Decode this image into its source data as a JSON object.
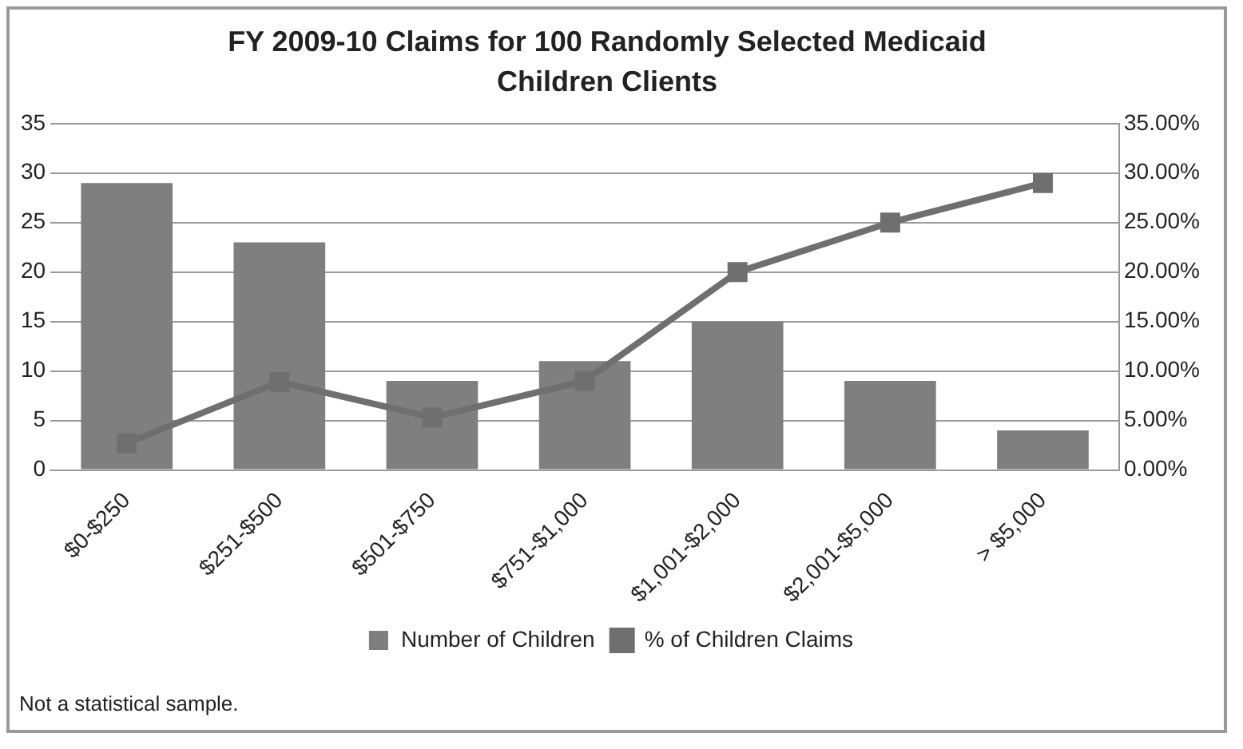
{
  "chart_data": {
    "type": "bar",
    "title": "FY 2009-10 Claims for 100 Randomly Selected Medicaid Children Clients",
    "categories": [
      "$0-$250",
      "$251-$500",
      "$501-$750",
      "$751-$1,000",
      "$1,001-$2,000",
      "$2,001-$5,000",
      "> $5,000"
    ],
    "series": [
      {
        "name": "Number of Children",
        "color": "#7f7f7f",
        "values": [
          29,
          23,
          9,
          11,
          15,
          9,
          4
        ]
      },
      {
        "name": "% of Children Claims",
        "type": "line",
        "axis": "y2",
        "color": "#6f6f6f",
        "values": [
          2.7,
          8.9,
          5.3,
          9,
          20,
          25,
          29
        ]
      }
    ],
    "ylim": [
      0,
      35
    ],
    "yticks": [
      0,
      5,
      10,
      15,
      20,
      25,
      30,
      35
    ],
    "y2lim": [
      0,
      35
    ],
    "y2ticks": [
      {
        "value": 0,
        "label": "0.00%"
      },
      {
        "value": 5,
        "label": "5.00%"
      },
      {
        "value": 10,
        "label": "10.00%"
      },
      {
        "value": 15,
        "label": "15.00%"
      },
      {
        "value": 20,
        "label": "20.00%"
      },
      {
        "value": 25,
        "label": "25.00%"
      },
      {
        "value": 30,
        "label": "30.00%"
      },
      {
        "value": 35,
        "label": "35.00%"
      }
    ],
    "grid": "y",
    "legend": "bottom",
    "marker": "square",
    "line_style": "solid",
    "annotations": [
      "Not a statistical sample."
    ]
  }
}
